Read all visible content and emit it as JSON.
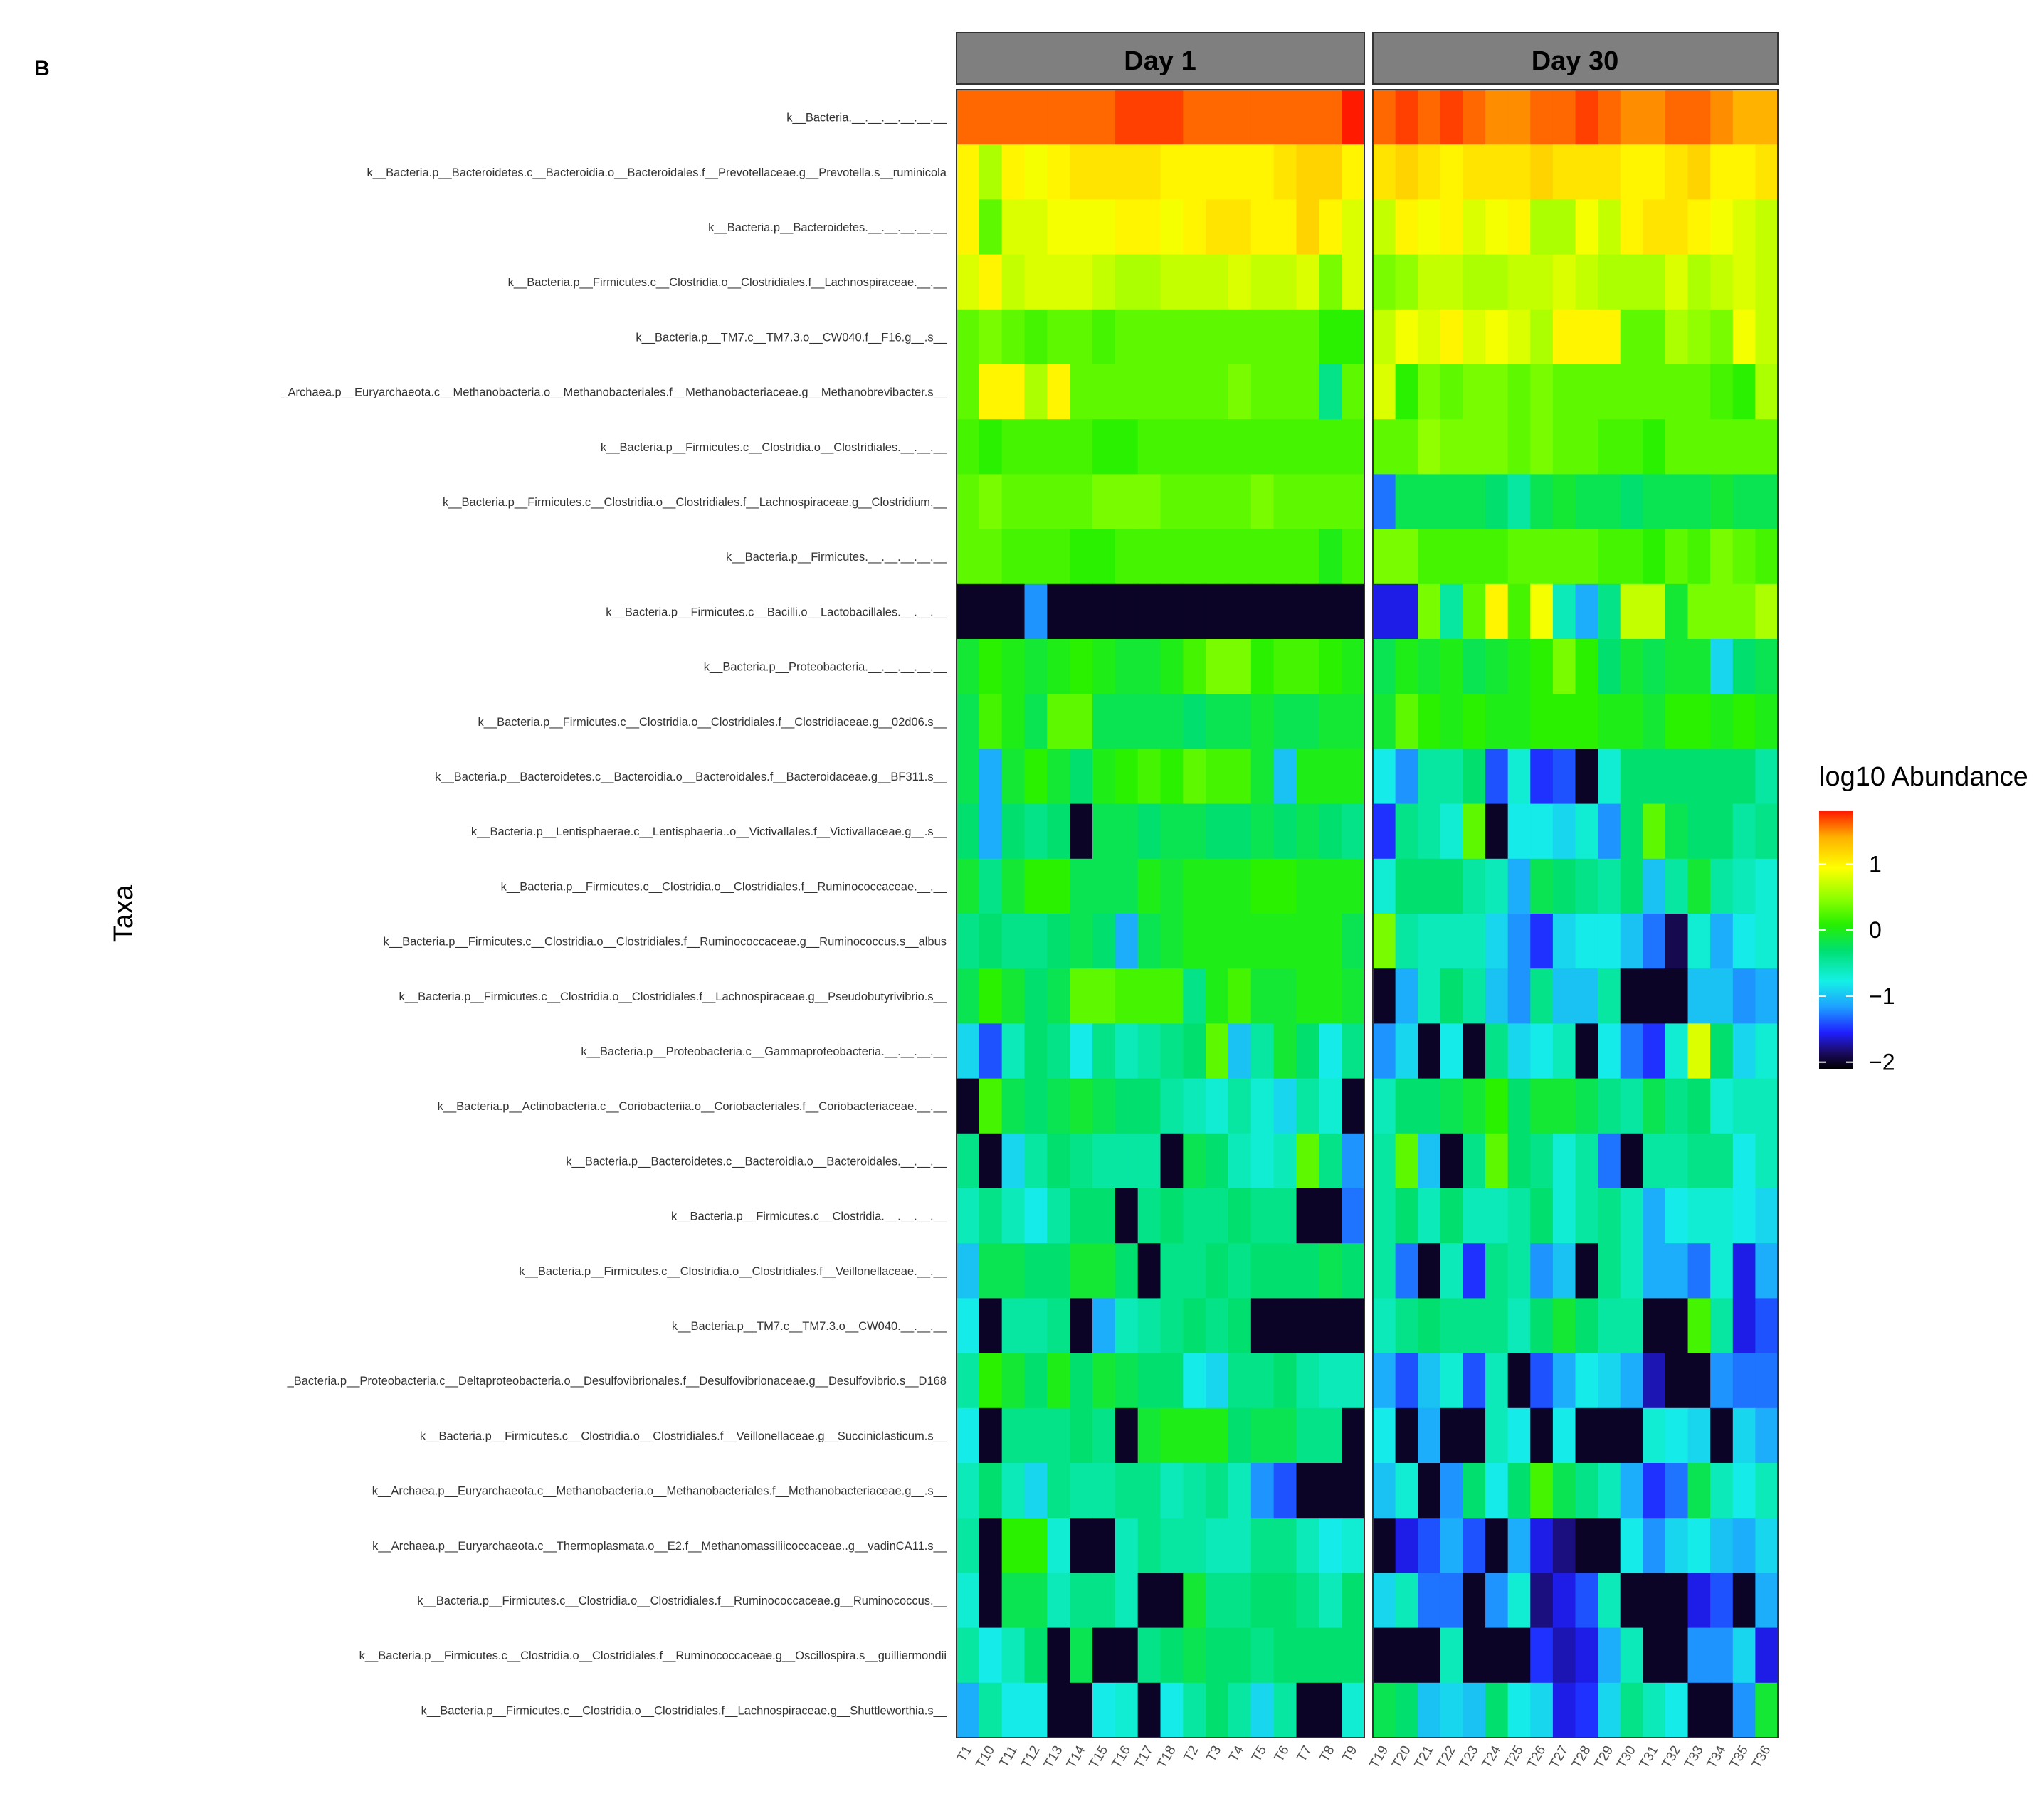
{
  "figure_label": "B",
  "chart_data": {
    "type": "heatmap",
    "ylabel": "Taxa",
    "legend": {
      "title": "log10 Abundance",
      "ticks": [
        1,
        0,
        -1,
        -2
      ],
      "tick_labels": [
        "1",
        "0",
        "−1",
        "−2"
      ],
      "range": [
        -2.1,
        1.8
      ],
      "placement": "right",
      "colors": [
        "#000000",
        "#1a0a5c",
        "#1f1fff",
        "#1ea0ff",
        "#14f0e6",
        "#00e070",
        "#26f000",
        "#8cff00",
        "#ffff00",
        "#ffb000",
        "#ff1a00"
      ]
    },
    "panels": [
      {
        "title": "Day 1",
        "samples": [
          "T1",
          "T10",
          "T11",
          "T12",
          "T13",
          "T14",
          "T15",
          "T16",
          "T17",
          "T18",
          "T2",
          "T3",
          "T4",
          "T5",
          "T6",
          "T7",
          "T8",
          "T9"
        ]
      },
      {
        "title": "Day 30",
        "samples": [
          "T19",
          "T20",
          "T21",
          "T22",
          "T23",
          "T24",
          "T25",
          "T26",
          "T27",
          "T28",
          "T29",
          "T30",
          "T31",
          "T32",
          "T33",
          "T34",
          "T35",
          "T36"
        ]
      }
    ],
    "taxa": [
      "k__Bacteria.__.__.__.__.__.__",
      "k__Bacteria.p__Bacteroidetes.c__Bacteroidia.o__Bacteroidales.f__Prevotellaceae.g__Prevotella.s__ruminicola",
      "k__Bacteria.p__Bacteroidetes.__.__.__.__.__",
      "k__Bacteria.p__Firmicutes.c__Clostridia.o__Clostridiales.f__Lachnospiraceae.__.__",
      "k__Bacteria.p__TM7.c__TM7.3.o__CW040.f__F16.g__.s__",
      "_Archaea.p__Euryarchaeota.c__Methanobacteria.o__Methanobacteriales.f__Methanobacteriaceae.g__Methanobrevibacter.s__",
      "k__Bacteria.p__Firmicutes.c__Clostridia.o__Clostridiales.__.__.__",
      "k__Bacteria.p__Firmicutes.c__Clostridia.o__Clostridiales.f__Lachnospiraceae.g__Clostridium.__",
      "k__Bacteria.p__Firmicutes.__.__.__.__.__",
      "k__Bacteria.p__Firmicutes.c__Bacilli.o__Lactobacillales.__.__.__",
      "k__Bacteria.p__Proteobacteria.__.__.__.__.__",
      "k__Bacteria.p__Firmicutes.c__Clostridia.o__Clostridiales.f__Clostridiaceae.g__02d06.s__",
      "k__Bacteria.p__Bacteroidetes.c__Bacteroidia.o__Bacteroidales.f__Bacteroidaceae.g__BF311.s__",
      "k__Bacteria.p__Lentisphaerae.c__Lentisphaeria..o__Victivallales.f__Victivallaceae.g__.s__",
      "k__Bacteria.p__Firmicutes.c__Clostridia.o__Clostridiales.f__Ruminococcaceae.__.__",
      "k__Bacteria.p__Firmicutes.c__Clostridia.o__Clostridiales.f__Ruminococcaceae.g__Ruminococcus.s__albus",
      "k__Bacteria.p__Firmicutes.c__Clostridia.o__Clostridiales.f__Lachnospiraceae.g__Pseudobutyrivibrio.s__",
      "k__Bacteria.p__Proteobacteria.c__Gammaproteobacteria.__.__.__.__",
      "k__Bacteria.p__Actinobacteria.c__Coriobacteriia.o__Coriobacteriales.f__Coriobacteriaceae.__.__",
      "k__Bacteria.p__Bacteroidetes.c__Bacteroidia.o__Bacteroidales.__.__.__",
      "k__Bacteria.p__Firmicutes.c__Clostridia.__.__.__.__",
      "k__Bacteria.p__Firmicutes.c__Clostridia.o__Clostridiales.f__Veillonellaceae.__.__",
      "k__Bacteria.p__TM7.c__TM7.3.o__CW040.__.__.__",
      "_Bacteria.p__Proteobacteria.c__Deltaproteobacteria.o__Desulfovibrionales.f__Desulfovibrionaceae.g__Desulfovibrio.s__D168",
      "k__Bacteria.p__Firmicutes.c__Clostridia.o__Clostridiales.f__Veillonellaceae.g__Succiniclasticum.s__",
      "k__Archaea.p__Euryarchaeota.c__Methanobacteria.o__Methanobacteriales.f__Methanobacteriaceae.g__.s__",
      "k__Archaea.p__Euryarchaeota.c__Thermoplasmata.o__E2.f__Methanomassiliicoccaceae..g__vadinCA11.s__",
      "k__Bacteria.p__Firmicutes.c__Clostridia.o__Clostridiales.f__Ruminococcaceae.g__Ruminococcus.__",
      "k__Bacteria.p__Firmicutes.c__Clostridia.o__Clostridiales.f__Ruminococcaceae.g__Oscillospira.s__guilliermondii",
      "k__Bacteria.p__Firmicutes.c__Clostridia.o__Clostridiales.f__Lachnospiraceae.g__Shuttleworthia.s__"
    ],
    "values_day1": [
      [
        1.6,
        1.6,
        1.6,
        1.6,
        1.6,
        1.6,
        1.6,
        1.7,
        1.7,
        1.7,
        1.6,
        1.6,
        1.6,
        1.6,
        1.6,
        1.6,
        1.6,
        1.8
      ],
      [
        1.0,
        0.6,
        1.0,
        0.9,
        1.0,
        1.1,
        1.1,
        1.1,
        1.1,
        1.0,
        1.0,
        1.0,
        1.0,
        1.0,
        1.1,
        1.2,
        1.2,
        1.0
      ],
      [
        1.0,
        0.3,
        0.8,
        0.8,
        0.9,
        0.9,
        0.9,
        1.0,
        1.0,
        0.9,
        1.0,
        1.1,
        1.1,
        1.0,
        1.0,
        1.2,
        1.0,
        0.8
      ],
      [
        0.8,
        1.0,
        0.7,
        0.8,
        0.8,
        0.8,
        0.7,
        0.6,
        0.6,
        0.7,
        0.7,
        0.7,
        0.8,
        0.7,
        0.7,
        0.8,
        0.4,
        0.8
      ],
      [
        0.3,
        0.4,
        0.3,
        0.2,
        0.3,
        0.3,
        0.2,
        0.3,
        0.3,
        0.3,
        0.3,
        0.3,
        0.3,
        0.3,
        0.3,
        0.3,
        0.1,
        0.1
      ],
      [
        0.3,
        1.0,
        1.0,
        0.6,
        1.0,
        0.3,
        0.3,
        0.3,
        0.3,
        0.3,
        0.3,
        0.3,
        0.4,
        0.3,
        0.3,
        0.3,
        -0.4,
        0.3
      ],
      [
        0.2,
        0.1,
        0.2,
        0.2,
        0.2,
        0.2,
        0.1,
        0.1,
        0.2,
        0.2,
        0.2,
        0.2,
        0.2,
        0.2,
        0.2,
        0.2,
        0.2,
        0.2
      ],
      [
        0.3,
        0.4,
        0.3,
        0.3,
        0.3,
        0.3,
        0.4,
        0.4,
        0.4,
        0.3,
        0.3,
        0.3,
        0.3,
        0.4,
        0.3,
        0.3,
        0.3,
        0.3
      ],
      [
        0.3,
        0.3,
        0.2,
        0.2,
        0.2,
        0.1,
        0.1,
        0.2,
        0.2,
        0.2,
        0.2,
        0.2,
        0.2,
        0.2,
        0.2,
        0.2,
        0.0,
        0.2
      ],
      [
        -2.0,
        -2.0,
        -2.0,
        -1.2,
        -2.0,
        -2.0,
        -2.0,
        -2.0,
        -2.0,
        -2.0,
        -2.0,
        -2.0,
        -2.0,
        -2.0,
        -2.0,
        -2.0,
        -2.0,
        -2.0
      ],
      [
        -0.1,
        0.1,
        0.0,
        -0.1,
        0.0,
        0.1,
        0.0,
        -0.1,
        -0.1,
        0.0,
        0.2,
        0.4,
        0.4,
        0.1,
        0.2,
        0.2,
        0.1,
        0.0
      ],
      [
        -0.2,
        0.2,
        0.0,
        -0.2,
        0.3,
        0.3,
        -0.2,
        -0.2,
        -0.2,
        -0.2,
        -0.3,
        -0.2,
        -0.2,
        -0.1,
        -0.2,
        -0.2,
        -0.1,
        -0.1
      ],
      [
        -0.2,
        -1.1,
        -0.1,
        0.1,
        -0.1,
        -0.3,
        0.0,
        0.1,
        0.2,
        0.1,
        0.3,
        0.2,
        0.2,
        -0.1,
        -1.0,
        0.0,
        0.0,
        0.0
      ],
      [
        -0.3,
        -1.1,
        -0.3,
        -0.4,
        -0.3,
        -2.0,
        -0.2,
        -0.2,
        -0.3,
        -0.2,
        -0.2,
        -0.3,
        -0.3,
        -0.2,
        -0.3,
        -0.2,
        -0.3,
        -0.4
      ],
      [
        -0.1,
        -0.4,
        -0.1,
        0.1,
        0.1,
        -0.2,
        -0.2,
        -0.2,
        0.0,
        -0.1,
        0.0,
        0.0,
        0.0,
        0.1,
        0.1,
        0.0,
        0.0,
        0.0
      ],
      [
        -0.4,
        -0.3,
        -0.4,
        -0.4,
        -0.3,
        -0.2,
        -0.3,
        -1.1,
        -0.2,
        -0.1,
        0.0,
        0.0,
        0.0,
        0.0,
        0.0,
        0.0,
        0.0,
        -0.2
      ],
      [
        -0.2,
        0.1,
        -0.1,
        -0.3,
        -0.2,
        0.3,
        0.3,
        0.2,
        0.2,
        0.2,
        -0.4,
        0.0,
        0.2,
        -0.1,
        -0.1,
        0.0,
        0.0,
        -0.1
      ],
      [
        -0.9,
        -1.4,
        -0.6,
        -0.3,
        -0.4,
        -0.8,
        -0.4,
        -0.6,
        -0.5,
        -0.4,
        -0.3,
        0.3,
        -1.0,
        -0.5,
        -0.1,
        -0.3,
        -0.8,
        -0.4
      ],
      [
        -2.0,
        0.2,
        -0.2,
        -0.3,
        -0.2,
        -0.1,
        -0.2,
        -0.3,
        -0.3,
        -0.5,
        -0.6,
        -0.7,
        -0.5,
        -0.7,
        -0.9,
        -0.5,
        -0.7,
        -2.0
      ],
      [
        -0.4,
        -2.0,
        -0.9,
        -0.5,
        -0.3,
        -0.4,
        -0.5,
        -0.5,
        -0.5,
        -2.0,
        -0.2,
        -0.3,
        -0.6,
        -0.7,
        -0.6,
        0.3,
        -0.4,
        -1.2
      ],
      [
        -0.6,
        -0.4,
        -0.6,
        -0.8,
        -0.5,
        -0.3,
        -0.3,
        -2.0,
        -0.4,
        -0.3,
        -0.4,
        -0.4,
        -0.3,
        -0.4,
        -0.4,
        -2.0,
        -2.0,
        -1.3
      ],
      [
        -1.0,
        -0.2,
        -0.2,
        -0.3,
        -0.3,
        -0.1,
        -0.1,
        -0.3,
        -2.0,
        -0.4,
        -0.4,
        -0.3,
        -0.4,
        -0.3,
        -0.3,
        -0.3,
        -0.2,
        -0.3
      ],
      [
        -0.8,
        -2.0,
        -0.5,
        -0.5,
        -0.4,
        -2.0,
        -1.1,
        -0.6,
        -0.5,
        -0.4,
        -0.3,
        -0.4,
        -0.3,
        -2.0,
        -2.0,
        -2.0,
        -2.0,
        -2.0
      ],
      [
        -0.5,
        0.1,
        -0.1,
        -0.3,
        0.0,
        -0.3,
        -0.1,
        -0.2,
        -0.3,
        -0.3,
        -0.8,
        -0.9,
        -0.4,
        -0.4,
        -0.3,
        -0.5,
        -0.6,
        -0.6
      ],
      [
        -0.8,
        -2.0,
        -0.4,
        -0.4,
        -0.4,
        -0.3,
        -0.4,
        -2.0,
        -0.1,
        0.0,
        0.0,
        0.0,
        -0.3,
        -0.2,
        -0.2,
        -0.4,
        -0.4,
        -2.0
      ],
      [
        -0.6,
        -0.3,
        -0.6,
        -0.9,
        -0.4,
        -0.5,
        -0.5,
        -0.4,
        -0.4,
        -0.6,
        -0.5,
        -0.4,
        -0.6,
        -1.2,
        -1.4,
        -2.0,
        -2.0,
        -2.0
      ],
      [
        -0.5,
        -2.0,
        0.1,
        0.1,
        -0.7,
        -2.0,
        -2.0,
        -0.6,
        -0.4,
        -0.5,
        -0.5,
        -0.6,
        -0.6,
        -0.4,
        -0.4,
        -0.6,
        -0.8,
        -0.7
      ],
      [
        -0.7,
        -2.0,
        -0.2,
        -0.2,
        -0.6,
        -0.4,
        -0.4,
        -0.6,
        -2.0,
        -2.0,
        -0.1,
        -0.4,
        -0.4,
        -0.3,
        -0.3,
        -0.4,
        -0.6,
        -0.3
      ],
      [
        -0.5,
        -0.8,
        -0.6,
        -0.3,
        -2.0,
        -0.2,
        -2.0,
        -2.0,
        -0.4,
        -0.3,
        -0.2,
        -0.3,
        -0.3,
        -0.4,
        -0.3,
        -0.3,
        -0.3,
        -0.3
      ],
      [
        -1.1,
        -0.5,
        -0.8,
        -0.8,
        -2.0,
        -2.0,
        -0.8,
        -0.7,
        -2.0,
        -0.8,
        -0.5,
        -0.3,
        -0.5,
        -0.9,
        -0.5,
        -2.0,
        -2.0,
        -0.7
      ]
    ],
    "values_day30": [
      [
        1.6,
        1.7,
        1.6,
        1.7,
        1.6,
        1.5,
        1.5,
        1.6,
        1.6,
        1.7,
        1.6,
        1.5,
        1.5,
        1.6,
        1.6,
        1.5,
        1.4,
        1.4
      ],
      [
        1.1,
        1.2,
        1.1,
        1.0,
        1.1,
        1.1,
        1.1,
        1.2,
        1.1,
        1.1,
        1.1,
        1.0,
        1.0,
        1.1,
        1.2,
        1.0,
        1.0,
        1.1
      ],
      [
        0.7,
        1.0,
        0.9,
        1.0,
        0.8,
        0.9,
        1.0,
        0.6,
        0.6,
        0.9,
        0.7,
        1.0,
        1.1,
        1.1,
        1.0,
        0.9,
        0.8,
        0.7
      ],
      [
        0.4,
        0.5,
        0.7,
        0.7,
        0.6,
        0.6,
        0.7,
        0.7,
        0.8,
        0.7,
        0.6,
        0.6,
        0.6,
        0.8,
        0.6,
        0.7,
        0.8,
        0.7
      ],
      [
        0.7,
        0.9,
        0.8,
        1.0,
        0.8,
        0.9,
        0.8,
        0.6,
        1.0,
        1.0,
        1.0,
        0.3,
        0.3,
        0.6,
        0.5,
        0.4,
        0.9,
        0.7
      ],
      [
        0.8,
        0.1,
        0.4,
        0.3,
        0.4,
        0.4,
        0.3,
        0.4,
        0.3,
        0.3,
        0.3,
        0.3,
        0.3,
        0.3,
        0.3,
        0.2,
        0.1,
        0.6
      ],
      [
        0.3,
        0.3,
        0.5,
        0.4,
        0.4,
        0.4,
        0.3,
        0.4,
        0.3,
        0.3,
        0.2,
        0.2,
        0.1,
        0.3,
        0.3,
        0.3,
        0.3,
        0.3
      ],
      [
        -1.3,
        -0.2,
        -0.2,
        -0.2,
        -0.2,
        -0.3,
        -0.5,
        -0.2,
        -0.1,
        -0.2,
        -0.2,
        -0.3,
        -0.2,
        -0.2,
        -0.2,
        -0.1,
        -0.2,
        -0.2
      ],
      [
        0.4,
        0.4,
        0.2,
        0.2,
        0.2,
        0.2,
        0.3,
        0.3,
        0.3,
        0.3,
        0.2,
        0.2,
        0.1,
        0.3,
        0.2,
        0.4,
        0.3,
        0.2
      ],
      [
        -1.6,
        -1.6,
        0.4,
        -0.5,
        0.3,
        1.0,
        0.2,
        0.9,
        -0.6,
        -1.1,
        -0.4,
        0.7,
        0.7,
        -0.1,
        0.4,
        0.4,
        0.4,
        0.6
      ],
      [
        -0.2,
        0.0,
        -0.1,
        0.0,
        -0.2,
        -0.1,
        0.0,
        0.1,
        0.4,
        0.1,
        -0.3,
        -0.1,
        -0.2,
        -0.1,
        -0.1,
        -0.9,
        -0.3,
        -0.2
      ],
      [
        -0.1,
        0.3,
        0.1,
        0.0,
        0.1,
        0.0,
        0.0,
        0.1,
        0.1,
        0.1,
        0.0,
        0.0,
        -0.1,
        0.1,
        0.1,
        0.0,
        0.1,
        0.0
      ],
      [
        -0.8,
        -1.2,
        -0.5,
        -0.5,
        -0.3,
        -1.4,
        -0.7,
        -1.5,
        -1.4,
        -2.0,
        -0.7,
        -0.3,
        -0.3,
        -0.3,
        -0.3,
        -0.3,
        -0.3,
        -0.5
      ],
      [
        -1.5,
        -0.4,
        -0.5,
        -0.7,
        0.3,
        -2.0,
        -0.8,
        -0.8,
        -0.9,
        -0.7,
        -1.2,
        -0.3,
        0.3,
        -0.2,
        -0.3,
        -0.3,
        -0.5,
        -0.4
      ],
      [
        -0.7,
        -0.3,
        -0.3,
        -0.3,
        -0.5,
        -0.6,
        -1.1,
        -0.2,
        -0.3,
        -0.4,
        -0.5,
        -0.3,
        -1.0,
        -0.5,
        -0.1,
        -0.5,
        -0.6,
        -0.7
      ],
      [
        0.4,
        -0.5,
        -0.6,
        -0.6,
        -0.6,
        -0.9,
        -1.2,
        -1.5,
        -0.9,
        -0.8,
        -0.8,
        -1.0,
        -1.3,
        -1.9,
        -0.7,
        -1.1,
        -0.8,
        -0.7
      ],
      [
        -2.0,
        -1.1,
        -0.6,
        -0.3,
        -0.5,
        -1.0,
        -1.2,
        -0.4,
        -1.0,
        -1.0,
        -0.5,
        -2.0,
        -2.0,
        -2.0,
        -1.0,
        -1.0,
        -1.2,
        -1.1
      ],
      [
        -1.2,
        -0.9,
        -2.0,
        -0.8,
        -2.0,
        -0.4,
        -0.9,
        -0.8,
        -0.6,
        -2.0,
        -0.8,
        -1.3,
        -1.5,
        -0.7,
        0.8,
        -0.3,
        -0.9,
        -0.7
      ],
      [
        -0.6,
        -0.3,
        -0.3,
        -0.2,
        -0.1,
        0.1,
        -0.3,
        -0.1,
        -0.1,
        -0.2,
        -0.4,
        -0.5,
        -0.2,
        -0.4,
        -0.3,
        -0.7,
        -0.6,
        -0.6
      ],
      [
        -0.5,
        0.3,
        -1.0,
        -2.0,
        -0.4,
        0.3,
        -0.3,
        -0.4,
        -0.7,
        -0.5,
        -1.3,
        -2.0,
        -0.5,
        -0.5,
        -0.4,
        -0.4,
        -0.8,
        -0.6
      ],
      [
        -0.5,
        -0.3,
        -0.6,
        -0.3,
        -0.6,
        -0.6,
        -0.5,
        -0.3,
        -0.7,
        -0.5,
        -0.4,
        -0.6,
        -1.1,
        -0.8,
        -0.7,
        -0.7,
        -0.8,
        -0.9
      ],
      [
        -0.5,
        -1.3,
        -2.0,
        -0.6,
        -1.5,
        -0.4,
        -0.5,
        -1.2,
        -1.0,
        -2.0,
        -0.4,
        -0.6,
        -1.1,
        -1.1,
        -1.3,
        -0.7,
        -1.6,
        -1.1
      ],
      [
        -0.6,
        -0.4,
        -0.3,
        -0.4,
        -0.4,
        -0.4,
        -0.6,
        -0.3,
        -0.1,
        -0.3,
        -0.5,
        -0.5,
        -2.0,
        -2.0,
        0.2,
        -0.5,
        -1.6,
        -1.4
      ],
      [
        -1.1,
        -1.4,
        -1.0,
        -0.7,
        -1.4,
        -0.6,
        -2.0,
        -1.4,
        -1.1,
        -0.8,
        -0.9,
        -1.1,
        -1.7,
        -2.0,
        -2.0,
        -1.2,
        -1.3,
        -1.3
      ],
      [
        -0.8,
        -2.0,
        -1.1,
        -2.0,
        -2.0,
        -0.6,
        -0.8,
        -2.0,
        -0.8,
        -2.0,
        -2.0,
        -2.0,
        -0.7,
        -0.8,
        -0.9,
        -2.0,
        -0.9,
        -1.1
      ],
      [
        -1.0,
        -0.7,
        -2.0,
        -1.2,
        -0.3,
        -0.8,
        -0.3,
        0.2,
        -0.2,
        -0.4,
        -0.6,
        -1.1,
        -1.5,
        -1.3,
        -0.2,
        -0.6,
        -0.8,
        -0.6
      ],
      [
        -2.0,
        -1.6,
        -1.4,
        -1.1,
        -1.4,
        -2.0,
        -1.1,
        -1.6,
        -1.8,
        -2.0,
        -2.0,
        -0.8,
        -1.2,
        -0.9,
        -0.8,
        -1.0,
        -1.1,
        -0.9
      ],
      [
        -0.9,
        -0.6,
        -1.3,
        -1.3,
        -2.0,
        -1.2,
        -0.7,
        -1.8,
        -1.6,
        -1.4,
        -0.6,
        -2.0,
        -2.0,
        -2.0,
        -1.6,
        -1.4,
        -2.0,
        -1.1
      ],
      [
        -2.0,
        -2.0,
        -2.0,
        -0.6,
        -2.0,
        -2.0,
        -2.0,
        -1.5,
        -1.7,
        -1.6,
        -1.1,
        -0.6,
        -2.0,
        -2.0,
        -1.2,
        -1.2,
        -0.9,
        -1.6
      ],
      [
        -0.2,
        -0.3,
        -1.0,
        -0.9,
        -1.0,
        -0.3,
        -0.8,
        -0.9,
        -1.6,
        -1.5,
        -0.9,
        -0.4,
        -0.6,
        -0.8,
        -2.0,
        -2.0,
        -1.2,
        -0.1
      ]
    ]
  }
}
